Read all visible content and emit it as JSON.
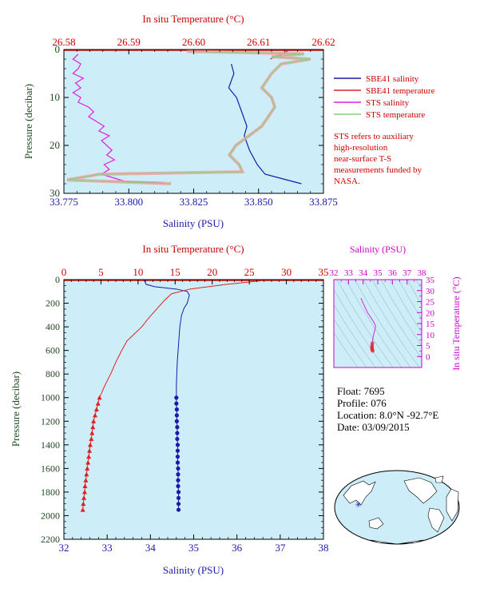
{
  "colors": {
    "panel_bg": "#cdeef8",
    "salinity": "#1a1aa8",
    "temperature": "#e02020",
    "sts_salinity": "#e020e0",
    "sts_temperature": "#86cf86",
    "sts_overlap": "#f3a0a0",
    "axis_temp": "#cc0000",
    "axis_sal": "#1a1aa8",
    "axis_pres": "#1f4a1f",
    "axis_ts": "#cc00cc"
  },
  "chart_data": [
    {
      "id": "top",
      "type": "line",
      "title": "In situ Temperature (°C)",
      "xlabel": "Salinity (PSU)",
      "ylabel": "Pressure (decibar)",
      "salinity_lim": [
        33.775,
        33.875
      ],
      "salinity_ticks": [
        "33.775",
        "33.800",
        "33.825",
        "33.850",
        "33.875"
      ],
      "temperature_lim": [
        26.58,
        26.62
      ],
      "temperature_ticks": [
        "26.58",
        "26.59",
        "26.60",
        "26.61",
        "26.62"
      ],
      "pressure_lim": [
        0,
        30
      ],
      "pressure_ticks": [
        "0",
        "10",
        "20",
        "30"
      ],
      "grid": false,
      "legend_position": "right",
      "legend": [
        "SBE41 salinity",
        "SBE41 temperature",
        "STS salinity",
        "STS temperature"
      ],
      "note": "STS refers to auxiliary high-resolution near-surface T-S measurements funded by NASA.",
      "series": [
        {
          "name": "SBE41 salinity",
          "kind": "salinity",
          "points": [
            [
              33.8395,
              3
            ],
            [
              33.8405,
              5
            ],
            [
              33.8385,
              8
            ],
            [
              33.8415,
              10
            ],
            [
              33.8435,
              13
            ],
            [
              33.8455,
              16
            ],
            [
              33.8445,
              18
            ],
            [
              33.8465,
              21
            ],
            [
              33.8495,
              24
            ],
            [
              33.8525,
              26
            ],
            [
              33.8595,
              27
            ],
            [
              33.8665,
              28
            ]
          ]
        },
        {
          "name": "SBE41 temperature",
          "kind": "temperature",
          "points": [
            [
              26.6145,
              0.3
            ],
            [
              26.6118,
              2
            ]
          ]
        },
        {
          "name": "STS salinity",
          "kind": "sts_salinity",
          "points": [
            [
              33.7805,
              1
            ],
            [
              33.7785,
              2
            ],
            [
              33.7815,
              3
            ],
            [
              33.7805,
              4
            ],
            [
              33.7785,
              5
            ],
            [
              33.7825,
              6
            ],
            [
              33.7795,
              7
            ],
            [
              33.7815,
              8
            ],
            [
              33.7785,
              9
            ],
            [
              33.7815,
              10
            ],
            [
              33.7805,
              11
            ],
            [
              33.7845,
              12
            ],
            [
              33.7865,
              13
            ],
            [
              33.7845,
              14
            ],
            [
              33.7875,
              15
            ],
            [
              33.7905,
              16
            ],
            [
              33.7885,
              17
            ],
            [
              33.7925,
              18
            ],
            [
              33.7895,
              19
            ],
            [
              33.7915,
              20
            ],
            [
              33.7935,
              21
            ],
            [
              33.7915,
              22
            ],
            [
              33.7945,
              23
            ],
            [
              33.7905,
              24
            ],
            [
              33.7925,
              25
            ],
            [
              33.7895,
              26
            ],
            [
              33.7955,
              27
            ],
            [
              33.7985,
              27.5
            ],
            [
              33.8135,
              27.7
            ]
          ]
        },
        {
          "name": "STS temperature",
          "kind": "sts_temperature",
          "points": [
            [
              26.599,
              0.4
            ],
            [
              26.617,
              0.9
            ],
            [
              26.612,
              1.5
            ],
            [
              26.618,
              2
            ],
            [
              26.6135,
              3
            ],
            [
              26.612,
              5
            ],
            [
              26.6105,
              8
            ],
            [
              26.612,
              10
            ],
            [
              26.6125,
              12
            ],
            [
              26.6115,
              14
            ],
            [
              26.6105,
              16
            ],
            [
              26.6085,
              18
            ],
            [
              26.6065,
              20
            ],
            [
              26.6055,
              22
            ],
            [
              26.607,
              24
            ],
            [
              26.6075,
              25.5
            ],
            [
              26.5855,
              26
            ],
            [
              26.5805,
              27.2
            ],
            [
              26.5965,
              28
            ]
          ]
        }
      ]
    },
    {
      "id": "main",
      "type": "line",
      "title": "In situ Temperature (°C)",
      "xlabel": "Salinity (PSU)",
      "ylabel": "Pressure (decibar)",
      "salinity_lim": [
        32,
        38
      ],
      "salinity_ticks": [
        "32",
        "33",
        "34",
        "35",
        "36",
        "37",
        "38"
      ],
      "temperature_lim": [
        0,
        35
      ],
      "temperature_ticks": [
        "0",
        "5",
        "10",
        "15",
        "20",
        "25",
        "30",
        "35"
      ],
      "pressure_lim": [
        0,
        2200
      ],
      "pressure_ticks": [
        "0",
        "200",
        "400",
        "600",
        "800",
        "1000",
        "1200",
        "1400",
        "1600",
        "1800",
        "2000",
        "2200"
      ],
      "grid": false,
      "series": [
        {
          "name": "Salinity",
          "kind": "salinity",
          "points": [
            [
              33.85,
              0
            ],
            [
              33.9,
              40
            ],
            [
              34.1,
              60
            ],
            [
              34.6,
              80
            ],
            [
              34.85,
              100
            ],
            [
              34.9,
              130
            ],
            [
              34.88,
              160
            ],
            [
              34.85,
              200
            ],
            [
              34.78,
              240
            ],
            [
              34.72,
              300
            ],
            [
              34.68,
              400
            ],
            [
              34.66,
              500
            ],
            [
              34.64,
              600
            ],
            [
              34.62,
              700
            ],
            [
              34.61,
              800
            ],
            [
              34.6,
              900
            ],
            [
              34.6,
              1000
            ]
          ],
          "markers": [
            [
              34.6,
              1000
            ],
            [
              34.6,
              1050
            ],
            [
              34.61,
              1100
            ],
            [
              34.61,
              1150
            ],
            [
              34.61,
              1200
            ],
            [
              34.62,
              1250
            ],
            [
              34.62,
              1300
            ],
            [
              34.62,
              1350
            ],
            [
              34.63,
              1400
            ],
            [
              34.63,
              1450
            ],
            [
              34.63,
              1500
            ],
            [
              34.63,
              1550
            ],
            [
              34.64,
              1600
            ],
            [
              34.64,
              1650
            ],
            [
              34.64,
              1700
            ],
            [
              34.64,
              1750
            ],
            [
              34.65,
              1800
            ],
            [
              34.65,
              1850
            ],
            [
              34.65,
              1900
            ],
            [
              34.65,
              1950
            ]
          ]
        },
        {
          "name": "Temperature",
          "kind": "temperature",
          "points": [
            [
              26.6,
              0
            ],
            [
              26.5,
              10
            ],
            [
              22,
              40
            ],
            [
              17,
              80
            ],
            [
              14.5,
              120
            ],
            [
              13.5,
              180
            ],
            [
              12.5,
              250
            ],
            [
              11.5,
              320
            ],
            [
              10.5,
              400
            ],
            [
              9.5,
              460
            ],
            [
              8.5,
              520
            ],
            [
              7.8,
              600
            ],
            [
              7,
              700
            ],
            [
              6.3,
              800
            ],
            [
              5.5,
              900
            ],
            [
              4.8,
              1000
            ]
          ],
          "markers": [
            [
              4.8,
              1000
            ],
            [
              4.6,
              1050
            ],
            [
              4.4,
              1100
            ],
            [
              4.2,
              1150
            ],
            [
              4.0,
              1200
            ],
            [
              3.9,
              1250
            ],
            [
              3.8,
              1300
            ],
            [
              3.7,
              1350
            ],
            [
              3.55,
              1400
            ],
            [
              3.45,
              1450
            ],
            [
              3.35,
              1500
            ],
            [
              3.25,
              1550
            ],
            [
              3.15,
              1600
            ],
            [
              3.05,
              1650
            ],
            [
              2.95,
              1700
            ],
            [
              2.85,
              1750
            ],
            [
              2.8,
              1800
            ],
            [
              2.7,
              1850
            ],
            [
              2.62,
              1900
            ],
            [
              2.55,
              1950
            ]
          ]
        }
      ]
    },
    {
      "id": "ts",
      "type": "scatter",
      "title": "Salinity (PSU)",
      "ylabel": "In situ Temperature (°C)",
      "salinity_lim": [
        32,
        38
      ],
      "salinity_ticks": [
        "32",
        "33",
        "34",
        "35",
        "36",
        "37",
        "38"
      ],
      "temperature_lim": [
        -5,
        35
      ],
      "temperature_ticks": [
        "0",
        "5",
        "10",
        "15",
        "20",
        "25",
        "30",
        "35"
      ],
      "points": [
        [
          33.85,
          26.6
        ],
        [
          33.95,
          25
        ],
        [
          34.3,
          20
        ],
        [
          34.7,
          16
        ],
        [
          34.85,
          14
        ],
        [
          34.8,
          12
        ],
        [
          34.72,
          10
        ],
        [
          34.66,
          8
        ],
        [
          34.63,
          6
        ],
        [
          34.61,
          4.8
        ],
        [
          34.6,
          4
        ],
        [
          34.62,
          3.2
        ],
        [
          34.65,
          2.6
        ]
      ]
    }
  ],
  "info": {
    "float": "Float:  7695",
    "profile": "Profile:  076",
    "location": "Location:  8.0°N  -92.7°E",
    "date": "Date:  03/09/2015"
  },
  "map": {
    "float_lat": 8.0,
    "float_lon": -92.7
  }
}
